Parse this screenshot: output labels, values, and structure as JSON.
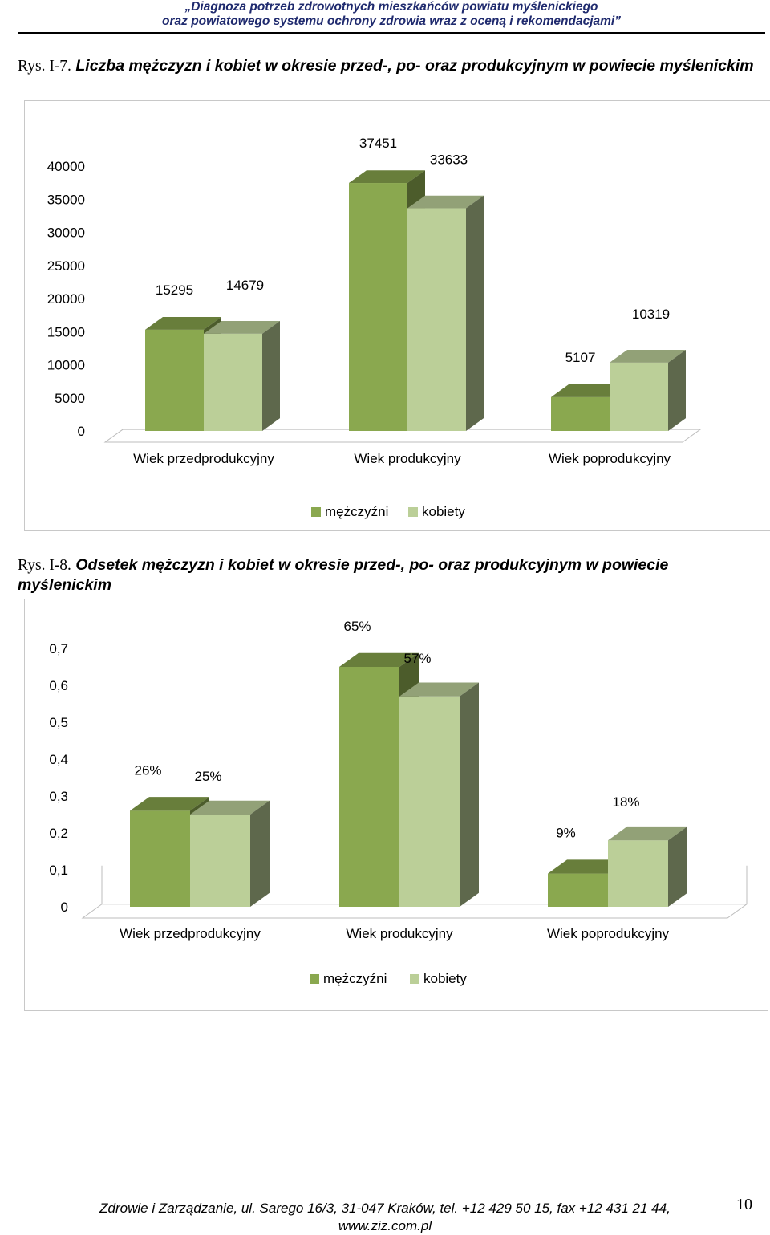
{
  "header": {
    "line1": "„Diagnoza potrzeb zdrowotnych mieszkańców powiatu myślenickiego",
    "line2": "oraz powiatowego systemu ochrony zdrowia wraz z oceną i rekomendacjami”"
  },
  "figure1": {
    "prefix": "Rys. I-7.",
    "title": "Liczba mężczyzn i kobiet w okresie przed-, po- oraz produkcyjnym w powiecie myślenickim"
  },
  "figure2": {
    "prefix": "Rys. I-8.",
    "title": "Odsetek mężczyzn i kobiet w okresie przed-, po- oraz produkcyjnym w powiecie myślenickim"
  },
  "colors": {
    "men": "#8aa84f",
    "women": "#bbcf98"
  },
  "chart_data": [
    {
      "type": "bar",
      "categories": [
        "Wiek przedprodukcyjny",
        "Wiek produkcyjny",
        "Wiek poprodukcyjny"
      ],
      "series": [
        {
          "name": "mężczyźni",
          "values": [
            15295,
            37451,
            5107
          ],
          "labels": [
            "15295",
            "37451",
            "5107"
          ]
        },
        {
          "name": "kobiety",
          "values": [
            14679,
            33633,
            10319
          ],
          "labels": [
            "14679",
            "33633",
            "10319"
          ]
        }
      ],
      "yticks": [
        "0",
        "5000",
        "10000",
        "15000",
        "20000",
        "25000",
        "30000",
        "35000",
        "40000"
      ],
      "ylim": [
        0,
        40000
      ],
      "legend": "bottom",
      "grid": false
    },
    {
      "type": "bar",
      "categories": [
        "Wiek przedprodukcyjny",
        "Wiek produkcyjny",
        "Wiek poprodukcyjny"
      ],
      "series": [
        {
          "name": "mężczyźni",
          "values": [
            0.26,
            0.65,
            0.09
          ],
          "labels": [
            "26%",
            "65%",
            "9%"
          ]
        },
        {
          "name": "kobiety",
          "values": [
            0.25,
            0.57,
            0.18
          ],
          "labels": [
            "25%",
            "57%",
            "18%"
          ]
        }
      ],
      "yticks": [
        "0",
        "0,1",
        "0,2",
        "0,3",
        "0,4",
        "0,5",
        "0,6",
        "0,7"
      ],
      "ylim": [
        0,
        0.7
      ],
      "legend": "bottom",
      "grid": false
    }
  ],
  "footer": {
    "line1": "Zdrowie i Zarządzanie, ul. Sarego 16/3, 31-047 Kraków, tel. +12 429 50 15, fax +12 431 21 44,",
    "line2": "www.ziz.com.pl",
    "page_number": "10"
  }
}
